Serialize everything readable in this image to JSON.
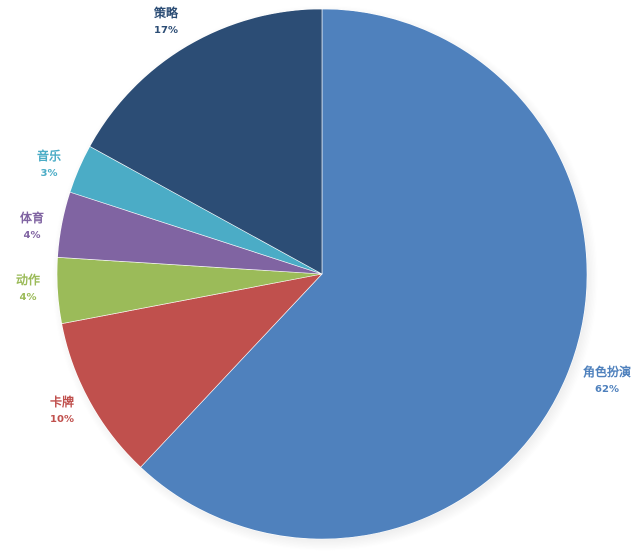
{
  "chart_data": {
    "type": "pie",
    "start_angle_deg": 0,
    "direction": "clockwise",
    "slices": [
      {
        "key": "role_playing",
        "name": "角色扮演",
        "value": 62,
        "label": "62%",
        "color": "#4f81bd"
      },
      {
        "key": "card",
        "name": "卡牌",
        "value": 10,
        "label": "10%",
        "color": "#c0504d"
      },
      {
        "key": "action",
        "name": "动作",
        "value": 4,
        "label": "4%",
        "color": "#9bbb59"
      },
      {
        "key": "sports",
        "name": "体育",
        "value": 4,
        "label": "4%",
        "color": "#8064a2"
      },
      {
        "key": "music",
        "name": "音乐",
        "value": 3,
        "label": "3%",
        "color": "#4bacc6"
      },
      {
        "key": "strategy",
        "name": "策略",
        "value": 17,
        "label": "17%",
        "color": "#2c4d75"
      }
    ]
  }
}
